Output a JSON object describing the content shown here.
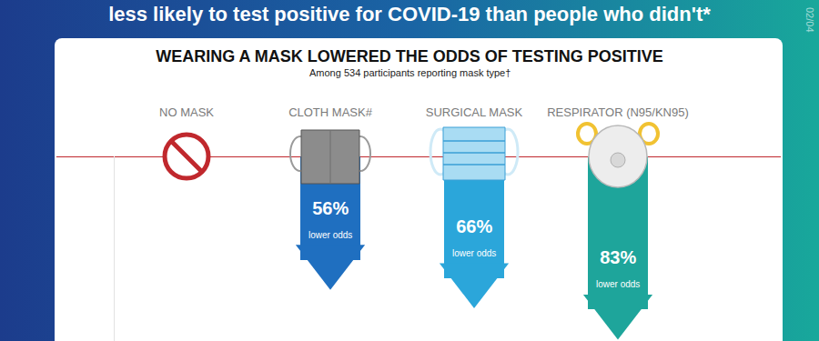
{
  "chart_data": {
    "type": "bar",
    "header": "less likely to test positive for COVID-19 than people who didn't*",
    "date": "02/04",
    "title": "WEARING A MASK LOWERED THE ODDS OF TESTING POSITIVE",
    "subtitle": "Among 534 participants reporting mask type†",
    "categories": [
      "NO MASK",
      "CLOTH MASK#",
      "SURGICAL MASK",
      "RESPIRATOR (N95/KN95)"
    ],
    "values": [
      null,
      56,
      66,
      83
    ],
    "value_labels": [
      null,
      "56%",
      "66%",
      "83%"
    ],
    "value_sublabel": "lower odds",
    "colors": [
      null,
      "#1f6fc0",
      "#2ba6da",
      "#1ea59b"
    ],
    "ylim": [
      0,
      100
    ],
    "tick_labels": "x",
    "grid": false,
    "data_labels": true
  }
}
